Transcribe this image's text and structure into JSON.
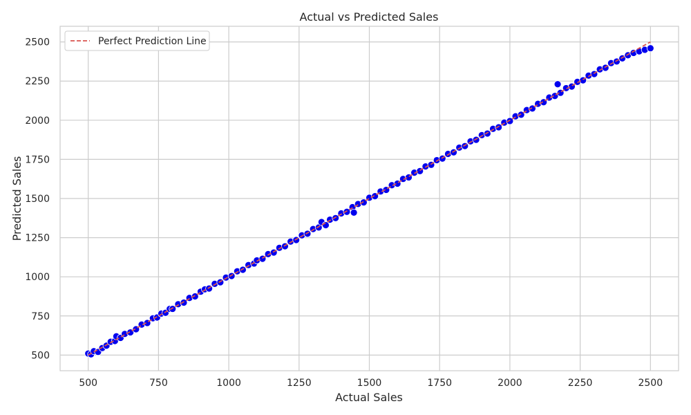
{
  "chart_data": {
    "type": "scatter",
    "title": "Actual vs Predicted Sales",
    "xlabel": "Actual Sales",
    "ylabel": "Predicted Sales",
    "xlim": [
      400,
      2600
    ],
    "ylim": [
      400,
      2600
    ],
    "xticks": [
      500,
      750,
      1000,
      1250,
      1500,
      1750,
      2000,
      2250,
      2500
    ],
    "yticks": [
      500,
      750,
      1000,
      1250,
      1500,
      1750,
      2000,
      2250,
      2500
    ],
    "grid": true,
    "legend": {
      "placement": "top-left",
      "entries": [
        "Perfect Prediction Line"
      ]
    },
    "colors": {
      "points": "#0000ee",
      "point_edge": "#ffffff",
      "reference_line": "#d9534f",
      "grid": "#cccccc",
      "frame": "#cccccc"
    },
    "reference_line": {
      "name": "Perfect Prediction Line",
      "style": "dashed",
      "x": [
        500,
        2500
      ],
      "y": [
        500,
        2500
      ]
    },
    "series": [
      {
        "x": [
          500,
          510,
          520,
          535,
          550,
          565,
          580,
          595,
          600,
          615,
          630,
          650,
          670,
          690,
          710,
          730,
          745,
          760,
          775,
          790,
          800,
          820,
          840,
          860,
          880,
          900,
          915,
          930,
          950,
          970,
          990,
          1010,
          1030,
          1050,
          1070,
          1090,
          1100,
          1120,
          1140,
          1160,
          1180,
          1200,
          1220,
          1240,
          1260,
          1280,
          1300,
          1320,
          1330,
          1345,
          1360,
          1380,
          1400,
          1420,
          1440,
          1445,
          1460,
          1480,
          1500,
          1520,
          1540,
          1560,
          1580,
          1600,
          1620,
          1640,
          1660,
          1680,
          1700,
          1720,
          1740,
          1760,
          1780,
          1800,
          1820,
          1840,
          1860,
          1880,
          1900,
          1920,
          1940,
          1960,
          1980,
          2000,
          2020,
          2040,
          2060,
          2080,
          2100,
          2120,
          2140,
          2160,
          2170,
          2180,
          2200,
          2220,
          2240,
          2260,
          2280,
          2300,
          2320,
          2340,
          2360,
          2380,
          2400,
          2420,
          2440,
          2460,
          2480,
          2500
        ],
        "y": [
          510,
          505,
          525,
          520,
          545,
          560,
          585,
          590,
          620,
          610,
          635,
          645,
          665,
          695,
          705,
          735,
          740,
          765,
          770,
          795,
          795,
          825,
          835,
          865,
          875,
          905,
          920,
          925,
          955,
          965,
          995,
          1005,
          1035,
          1045,
          1075,
          1085,
          1105,
          1115,
          1145,
          1155,
          1185,
          1195,
          1225,
          1235,
          1265,
          1275,
          1305,
          1315,
          1350,
          1330,
          1365,
          1375,
          1405,
          1415,
          1445,
          1410,
          1465,
          1475,
          1505,
          1515,
          1545,
          1555,
          1585,
          1595,
          1625,
          1635,
          1665,
          1675,
          1705,
          1715,
          1745,
          1755,
          1785,
          1795,
          1825,
          1835,
          1865,
          1875,
          1905,
          1915,
          1945,
          1955,
          1985,
          1995,
          2025,
          2035,
          2065,
          2075,
          2105,
          2115,
          2145,
          2155,
          2230,
          2175,
          2205,
          2215,
          2245,
          2255,
          2285,
          2295,
          2325,
          2335,
          2365,
          2375,
          2395,
          2415,
          2430,
          2440,
          2450,
          2460
        ]
      }
    ]
  }
}
